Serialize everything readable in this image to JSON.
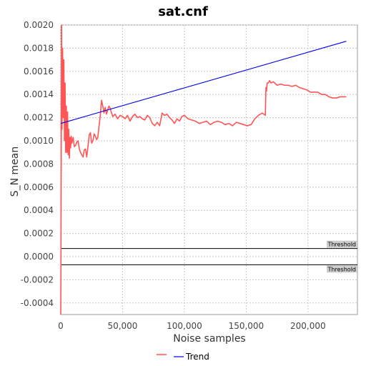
{
  "chart_data": {
    "type": "line",
    "title": "sat.cnf",
    "xlabel": "Noise samples",
    "ylabel": "S_N mean",
    "xlim": [
      0,
      240000
    ],
    "ylim": [
      -0.0005,
      0.002
    ],
    "grid": true,
    "legend_position": "bottom",
    "x_ticks": [
      0,
      50000,
      100000,
      150000,
      200000
    ],
    "x_tick_labels": [
      "0",
      "50,000",
      "100,000",
      "150,000",
      "200,000"
    ],
    "y_ticks": [
      0.002,
      0.0018,
      0.0016,
      0.0014,
      0.0012,
      0.001,
      0.0008,
      0.0006,
      0.0004,
      0.0002,
      0.0,
      -0.0002,
      -0.0004
    ],
    "y_tick_labels": [
      "0.0020",
      "0.0018",
      "0.0016",
      "0.0014",
      "0.0012",
      "0.0010",
      "0.0008",
      "0.0006",
      "0.0004",
      "0.0002",
      "0.0000",
      "-0.0002",
      "-0.0004"
    ],
    "series": [
      {
        "color": "#ff5555",
        "x": [
          0,
          300,
          700,
          1000,
          1500,
          2000,
          2500,
          3000,
          3500,
          4000,
          4500,
          5000,
          5500,
          6000,
          6500,
          7000,
          7500,
          8000,
          8500,
          9000,
          10000,
          11000,
          12000,
          13000,
          14000,
          15000,
          16000,
          17000,
          18000,
          19000,
          20000,
          21000,
          22000,
          23000,
          24000,
          25000,
          26000,
          27000,
          28000,
          29000,
          30000,
          31000,
          32000,
          33000,
          34000,
          35000,
          36000,
          37000,
          38000,
          39000,
          40000,
          42000,
          44000,
          46000,
          48000,
          50000,
          52000,
          54000,
          56000,
          58000,
          60000,
          62000,
          64000,
          66000,
          68000,
          70000,
          72000,
          74000,
          76000,
          78000,
          80000,
          82000,
          84000,
          86000,
          88000,
          90000,
          92000,
          94000,
          96000,
          98000,
          100000,
          103000,
          106000,
          109000,
          112000,
          115000,
          118000,
          121000,
          124000,
          127000,
          130000,
          133000,
          136000,
          139000,
          142000,
          145000,
          148000,
          151000,
          154000,
          157000,
          160000,
          163000,
          165500,
          166000,
          166500,
          167000,
          168000,
          169000,
          170000,
          172000,
          175000,
          178000,
          181000,
          184000,
          187000,
          190000,
          193000,
          196000,
          199000,
          202000,
          205000,
          208000,
          211000,
          214000,
          217000,
          220000,
          223000,
          226000,
          229000,
          231000
        ],
        "values": [
          -0.0005,
          0.0005,
          0.002,
          0.0011,
          0.0018,
          0.0012,
          0.0017,
          0.001,
          0.0015,
          0.0009,
          0.0013,
          0.0009,
          0.00125,
          0.00088,
          0.0011,
          0.00085,
          0.00103,
          0.00094,
          0.00104,
          0.00098,
          0.00103,
          0.00095,
          0.00096,
          0.00099,
          0.001,
          0.00093,
          0.0009,
          0.00088,
          0.00086,
          0.00092,
          0.00093,
          0.00086,
          0.00095,
          0.00105,
          0.00107,
          0.00098,
          0.001,
          0.00106,
          0.00104,
          0.00101,
          0.00103,
          0.00113,
          0.00122,
          0.00135,
          0.0013,
          0.00124,
          0.00129,
          0.00123,
          0.00127,
          0.0013,
          0.00128,
          0.00121,
          0.00123,
          0.00119,
          0.00122,
          0.00121,
          0.00119,
          0.00122,
          0.00117,
          0.00121,
          0.00123,
          0.0012,
          0.00121,
          0.00119,
          0.00118,
          0.00122,
          0.0012,
          0.00115,
          0.00113,
          0.00116,
          0.00113,
          0.00124,
          0.00122,
          0.00123,
          0.0012,
          0.00118,
          0.00115,
          0.00119,
          0.00117,
          0.00121,
          0.00122,
          0.00119,
          0.00118,
          0.00117,
          0.00115,
          0.00116,
          0.00117,
          0.00114,
          0.00116,
          0.00117,
          0.00116,
          0.00114,
          0.00115,
          0.00113,
          0.00116,
          0.00115,
          0.00114,
          0.00113,
          0.00114,
          0.00119,
          0.00122,
          0.00124,
          0.00122,
          0.00146,
          0.00143,
          0.0015,
          0.0015,
          0.00152,
          0.0015,
          0.00151,
          0.00148,
          0.00149,
          0.00148,
          0.00148,
          0.00147,
          0.00148,
          0.00146,
          0.00145,
          0.00144,
          0.00142,
          0.00142,
          0.00142,
          0.0014,
          0.0014,
          0.00138,
          0.00137,
          0.00137,
          0.00138,
          0.00138,
          0.00138
        ]
      },
      {
        "name": "Trend",
        "color": "#0000ee",
        "x": [
          0,
          231000
        ],
        "values": [
          0.00115,
          0.00186
        ]
      }
    ],
    "thresholds": [
      {
        "label": "Threshold",
        "value": 7e-05,
        "color": "#000000"
      },
      {
        "label": "Threshold",
        "value": -7e-05,
        "color": "#000000"
      }
    ]
  }
}
